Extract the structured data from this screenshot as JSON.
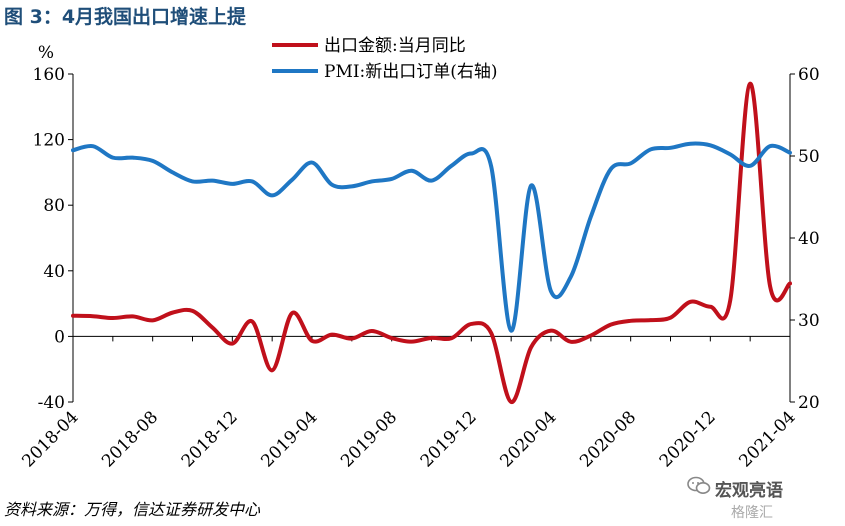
{
  "figure": {
    "title": "图 3：4月我国出口增速上提",
    "source": "资料来源：万得，信达证券研发中心"
  },
  "watermark": {
    "line1": "宏观亮语",
    "line2": "格隆汇",
    "icon": "wechat-icon"
  },
  "chart_data": {
    "type": "line",
    "x_ticks": [
      "2018-04",
      "2018-08",
      "2018-12",
      "2019-04",
      "2019-08",
      "2019-12",
      "2020-04",
      "2020-08",
      "2020-12",
      "2021-04"
    ],
    "y_left": {
      "unit": "%",
      "min": -40,
      "max": 160,
      "ticks": [
        -40,
        0,
        40,
        80,
        120,
        160
      ]
    },
    "y_right": {
      "min": 20,
      "max": 60,
      "ticks": [
        20,
        30,
        40,
        50,
        60
      ]
    },
    "x_axis_crosses_left_y": 0,
    "legend_position": "top-center",
    "grid": false,
    "series": [
      {
        "name": "出口金额:当月同比",
        "axis": "left",
        "color": "#c0101b",
        "points": [
          [
            "2018-04",
            12.6
          ],
          [
            "2018-05",
            12.3
          ],
          [
            "2018-06",
            11.2
          ],
          [
            "2018-07",
            12.2
          ],
          [
            "2018-08",
            9.8
          ],
          [
            "2018-09",
            14.5
          ],
          [
            "2018-10",
            15.6
          ],
          [
            "2018-11",
            5.4
          ],
          [
            "2018-12",
            -4.4
          ],
          [
            "2019-01",
            9.1
          ],
          [
            "2019-02",
            -20.7
          ],
          [
            "2019-03",
            14.2
          ],
          [
            "2019-04",
            -2.7
          ],
          [
            "2019-05",
            1.1
          ],
          [
            "2019-06",
            -1.3
          ],
          [
            "2019-07",
            3.3
          ],
          [
            "2019-08",
            -1.0
          ],
          [
            "2019-09",
            -3.2
          ],
          [
            "2019-10",
            -0.9
          ],
          [
            "2019-11",
            -1.1
          ],
          [
            "2019-12",
            7.6
          ],
          [
            "2020-01",
            2.0
          ],
          [
            "2020-02",
            -40.0
          ],
          [
            "2020-03",
            -6.6
          ],
          [
            "2020-04",
            3.5
          ],
          [
            "2020-05",
            -3.3
          ],
          [
            "2020-06",
            0.5
          ],
          [
            "2020-07",
            7.2
          ],
          [
            "2020-08",
            9.5
          ],
          [
            "2020-09",
            9.9
          ],
          [
            "2020-10",
            11.4
          ],
          [
            "2020-11",
            21.1
          ],
          [
            "2020-12",
            18.1
          ],
          [
            "2021-01",
            22.0
          ],
          [
            "2021-02",
            154.1
          ],
          [
            "2021-03",
            30.6
          ],
          [
            "2021-04",
            32.3
          ]
        ]
      },
      {
        "name": "PMI:新出口订单(右轴)",
        "axis": "right",
        "color": "#1f77c4",
        "points": [
          [
            "2018-04",
            50.7
          ],
          [
            "2018-05",
            51.2
          ],
          [
            "2018-06",
            49.8
          ],
          [
            "2018-07",
            49.8
          ],
          [
            "2018-08",
            49.4
          ],
          [
            "2018-09",
            48.0
          ],
          [
            "2018-10",
            46.9
          ],
          [
            "2018-11",
            47.0
          ],
          [
            "2018-12",
            46.6
          ],
          [
            "2019-01",
            46.9
          ],
          [
            "2019-02",
            45.2
          ],
          [
            "2019-03",
            47.1
          ],
          [
            "2019-04",
            49.2
          ],
          [
            "2019-05",
            46.5
          ],
          [
            "2019-06",
            46.3
          ],
          [
            "2019-07",
            46.9
          ],
          [
            "2019-08",
            47.2
          ],
          [
            "2019-09",
            48.2
          ],
          [
            "2019-10",
            47.0
          ],
          [
            "2019-11",
            48.8
          ],
          [
            "2019-12",
            50.3
          ],
          [
            "2020-01",
            48.7
          ],
          [
            "2020-02",
            28.7
          ],
          [
            "2020-03",
            46.4
          ],
          [
            "2020-04",
            33.5
          ],
          [
            "2020-05",
            35.3
          ],
          [
            "2020-06",
            42.6
          ],
          [
            "2020-07",
            48.4
          ],
          [
            "2020-08",
            49.1
          ],
          [
            "2020-09",
            50.8
          ],
          [
            "2020-10",
            51.0
          ],
          [
            "2020-11",
            51.5
          ],
          [
            "2020-12",
            51.3
          ],
          [
            "2021-01",
            50.2
          ],
          [
            "2021-02",
            48.8
          ],
          [
            "2021-03",
            51.2
          ],
          [
            "2021-04",
            50.4
          ]
        ]
      }
    ]
  }
}
